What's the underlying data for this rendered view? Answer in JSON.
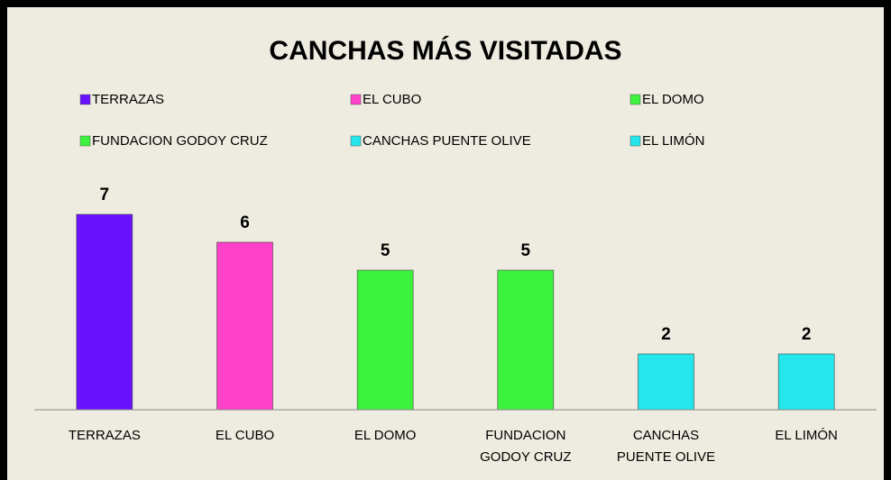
{
  "chart_data": {
    "type": "bar",
    "title": "CANCHAS MÁS VISITADAS",
    "categories": [
      "TERRAZAS",
      "EL CUBO",
      "EL DOMO",
      "FUNDACION GODOY CRUZ",
      "CANCHAS PUENTE OLIVE",
      "EL LIMÓN"
    ],
    "values": [
      7,
      6,
      5,
      5,
      2,
      2
    ],
    "colors": [
      "#6a12ff",
      "#ff40c8",
      "#3df23d",
      "#3df23d",
      "#25e6ea",
      "#25e6ea"
    ],
    "legend": "top"
  }
}
